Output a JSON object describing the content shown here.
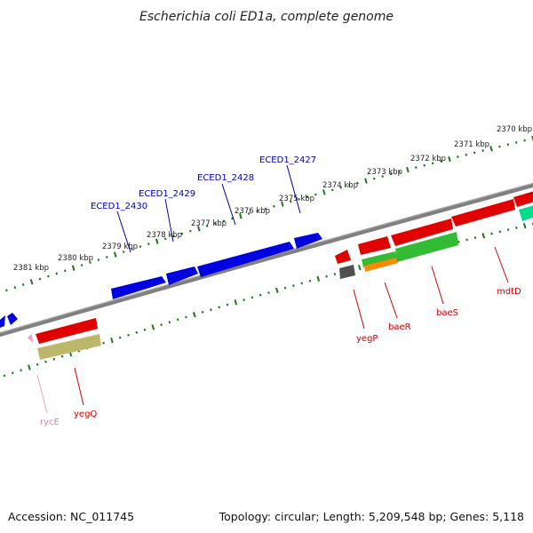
{
  "title": "Escherichia coli ED1a, complete genome",
  "footer": {
    "accession": "Accession: NC_011745",
    "summary": "Topology: circular; Length: 5,209,548 bp; Genes: 5,118"
  },
  "ticks": [
    "2370 kbp",
    "2371 kbp",
    "2372 kbp",
    "2373 kbp",
    "2374 kbp",
    "2375 kbp",
    "2376 kbp",
    "2377 kbp",
    "2378 kbp",
    "2379 kbp",
    "2380 kbp",
    "2381 kbp"
  ],
  "gene_labels": [
    "ECED1_2427",
    "ECED1_2428",
    "ECED1_2429",
    "ECED1_2430",
    "yegP",
    "baeR",
    "baeS",
    "mdtD",
    "rycE",
    "yegQ"
  ],
  "colors": {
    "backbone": "#808080",
    "ticks": "#1a7a1a",
    "hypothetical_gene": "#0000e0",
    "named_gene_label": "#cc0000",
    "blue_label": "#0000aa",
    "rna": "#f0a0c0"
  }
}
